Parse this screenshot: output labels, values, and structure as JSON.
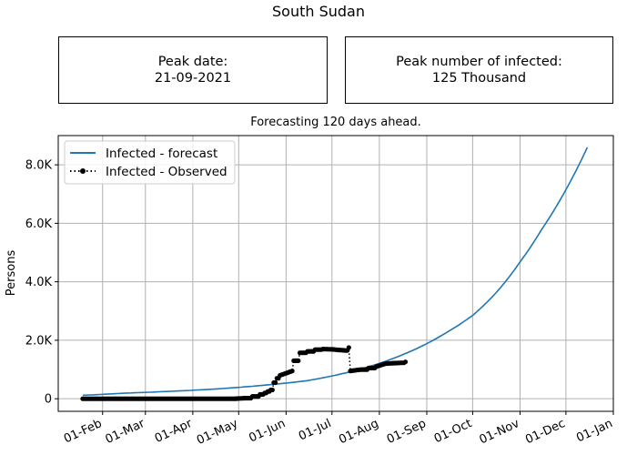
{
  "suptitle": "South Sudan",
  "peak_date": {
    "label": "Peak date:",
    "value": "21-09-2021"
  },
  "peak_number": {
    "label": "Peak number of infected:",
    "value": "125 Thousand"
  },
  "colors": {
    "forecast": "#1f77b4",
    "observed": "#000000",
    "grid": "#b0b0b0"
  },
  "chart_data": {
    "type": "line",
    "title": "Forecasting 120 days ahead.",
    "xlabel": "",
    "ylabel": "Persons",
    "x_ticks": [
      "01-Feb",
      "01-Mar",
      "01-Apr",
      "01-May",
      "01-Jun",
      "01-Jul",
      "01-Aug",
      "01-Sep",
      "01-Oct",
      "01-Nov",
      "01-Dec",
      "01-Jan"
    ],
    "y_ticks": [
      {
        "value": 0,
        "label": "0"
      },
      {
        "value": 2000,
        "label": "2.0K"
      },
      {
        "value": 4000,
        "label": "4.0K"
      },
      {
        "value": 6000,
        "label": "6.0K"
      },
      {
        "value": 8000,
        "label": "8.0K"
      }
    ],
    "xlim": [
      "2021-01-03",
      "2022-01-01"
    ],
    "ylim": [
      -430,
      9000
    ],
    "grid": true,
    "legend_position": "top-left",
    "series": [
      {
        "name": "Infected - forecast",
        "style": "solid",
        "x": [
          "2021-01-19",
          "2021-02-15",
          "2021-03-15",
          "2021-04-15",
          "2021-05-15",
          "2021-06-15",
          "2021-07-15",
          "2021-08-15",
          "2021-09-15",
          "2021-10-01",
          "2021-10-15",
          "2021-11-01",
          "2021-11-15",
          "2021-12-01",
          "2021-12-15"
        ],
        "y": [
          120,
          190,
          250,
          330,
          450,
          620,
          950,
          1480,
          2300,
          2850,
          3550,
          4680,
          5780,
          7150,
          8600
        ]
      },
      {
        "name": "Infected - Observed",
        "style": "dotted-markers",
        "x": [
          "2021-01-19",
          "2021-02-15",
          "2021-03-15",
          "2021-04-15",
          "2021-04-28",
          "2021-05-05",
          "2021-05-10",
          "2021-05-15",
          "2021-05-18",
          "2021-05-20",
          "2021-05-22",
          "2021-05-24",
          "2021-05-26",
          "2021-05-28",
          "2021-06-05",
          "2021-06-06",
          "2021-06-10",
          "2021-06-15",
          "2021-06-20",
          "2021-06-25",
          "2021-07-01",
          "2021-07-10",
          "2021-07-12",
          "2021-07-13",
          "2021-07-20",
          "2021-07-25",
          "2021-07-30",
          "2021-08-05",
          "2021-08-15",
          "2021-08-18"
        ],
        "y": [
          0,
          0,
          0,
          0,
          0,
          20,
          80,
          150,
          200,
          250,
          300,
          550,
          700,
          800,
          950,
          1300,
          1570,
          1620,
          1680,
          1700,
          1690,
          1650,
          1750,
          950,
          1000,
          1050,
          1100,
          1200,
          1230,
          1260
        ]
      }
    ]
  }
}
